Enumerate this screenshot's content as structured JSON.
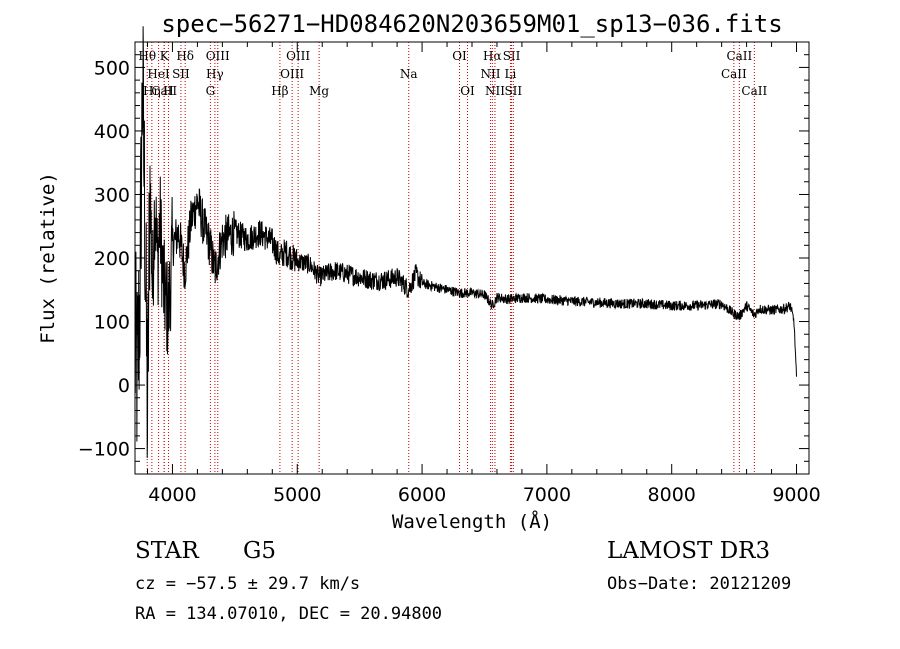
{
  "chart_data": {
    "type": "line",
    "title": "spec−56271−HD084620N203659M01_sp13−036.fits",
    "xlabel": "Wavelength (Å)",
    "ylabel": "Flux (relative)",
    "xlim": [
      3700,
      9100
    ],
    "ylim": [
      -140,
      540
    ],
    "x_ticks": [
      4000,
      5000,
      6000,
      7000,
      8000,
      9000
    ],
    "x_tick_labels": [
      "4000",
      "5000",
      "6000",
      "7000",
      "8000",
      "9000"
    ],
    "y_ticks": [
      -100,
      0,
      100,
      200,
      300,
      400,
      500
    ],
    "y_tick_labels": [
      "−100",
      "0",
      "100",
      "200",
      "300",
      "400",
      "500"
    ],
    "spectrum_anchors": [
      [
        3700,
        60
      ],
      [
        3720,
        10
      ],
      [
        3740,
        150
      ],
      [
        3760,
        480
      ],
      [
        3780,
        250
      ],
      [
        3800,
        -60
      ],
      [
        3820,
        330
      ],
      [
        3840,
        150
      ],
      [
        3860,
        300
      ],
      [
        3880,
        190
      ],
      [
        3900,
        260
      ],
      [
        3930,
        150
      ],
      [
        3968,
        110
      ],
      [
        4000,
        220
      ],
      [
        4050,
        240
      ],
      [
        4100,
        180
      ],
      [
        4150,
        260
      ],
      [
        4200,
        290
      ],
      [
        4250,
        250
      ],
      [
        4300,
        220
      ],
      [
        4340,
        180
      ],
      [
        4400,
        230
      ],
      [
        4500,
        240
      ],
      [
        4600,
        230
      ],
      [
        4700,
        240
      ],
      [
        4800,
        225
      ],
      [
        4861,
        200
      ],
      [
        4900,
        210
      ],
      [
        5000,
        195
      ],
      [
        5100,
        190
      ],
      [
        5175,
        170
      ],
      [
        5300,
        180
      ],
      [
        5400,
        175
      ],
      [
        5500,
        170
      ],
      [
        5600,
        165
      ],
      [
        5700,
        165
      ],
      [
        5800,
        170
      ],
      [
        5893,
        150
      ],
      [
        5950,
        175
      ],
      [
        6000,
        160
      ],
      [
        6100,
        155
      ],
      [
        6200,
        150
      ],
      [
        6300,
        145
      ],
      [
        6400,
        145
      ],
      [
        6500,
        142
      ],
      [
        6563,
        125
      ],
      [
        6600,
        138
      ],
      [
        6700,
        135
      ],
      [
        6800,
        138
      ],
      [
        7000,
        135
      ],
      [
        7200,
        132
      ],
      [
        7400,
        130
      ],
      [
        7600,
        128
      ],
      [
        7800,
        128
      ],
      [
        8000,
        125
      ],
      [
        8200,
        125
      ],
      [
        8400,
        128
      ],
      [
        8498,
        112
      ],
      [
        8542,
        108
      ],
      [
        8600,
        125
      ],
      [
        8662,
        110
      ],
      [
        8700,
        120
      ],
      [
        8800,
        118
      ],
      [
        8900,
        120
      ],
      [
        8950,
        125
      ],
      [
        8980,
        100
      ],
      [
        9000,
        10
      ]
    ],
    "spectral_lines": [
      {
        "label": "CaII",
        "x": 3934,
        "row": 2
      },
      {
        "label": "Hθ",
        "x": 3798,
        "row": 0
      },
      {
        "label": "Hη",
        "x": 3835,
        "row": 2
      },
      {
        "label": "K",
        "x": 3934,
        "row": 0
      },
      {
        "label": "HeI",
        "x": 3889,
        "row": 1
      },
      {
        "label": "H",
        "x": 3968,
        "row": 2
      },
      {
        "label": "SII",
        "x": 4068,
        "row": 1
      },
      {
        "label": "Hδ",
        "x": 4102,
        "row": 0
      },
      {
        "label": "OIII",
        "x": 4363,
        "row": 0
      },
      {
        "label": "Hγ",
        "x": 4340,
        "row": 1
      },
      {
        "label": "G",
        "x": 4304,
        "row": 2
      },
      {
        "label": "Hβ",
        "x": 4861,
        "row": 2
      },
      {
        "label": "OIII",
        "x": 5007,
        "row": 0
      },
      {
        "label": "OIII",
        "x": 4959,
        "row": 1
      },
      {
        "label": "Mg",
        "x": 5175,
        "row": 2
      },
      {
        "label": "Na",
        "x": 5893,
        "row": 1
      },
      {
        "label": "OI",
        "x": 6300,
        "row": 0
      },
      {
        "label": "OI",
        "x": 6364,
        "row": 2
      },
      {
        "label": "Hα",
        "x": 6563,
        "row": 0
      },
      {
        "label": "NII",
        "x": 6548,
        "row": 1
      },
      {
        "label": "NII",
        "x": 6584,
        "row": 2
      },
      {
        "label": "SII",
        "x": 6717,
        "row": 0
      },
      {
        "label": "Li",
        "x": 6708,
        "row": 1
      },
      {
        "label": "SII",
        "x": 6731,
        "row": 2
      },
      {
        "label": "CaII",
        "x": 8542,
        "row": 0
      },
      {
        "label": "CaII",
        "x": 8498,
        "row": 1
      },
      {
        "label": "CaII",
        "x": 8662,
        "row": 2
      }
    ],
    "colors": {
      "spectrum": "#000000",
      "line_markers": "#cc0000"
    }
  },
  "info": {
    "type": "STAR",
    "subclass": "G5",
    "survey": "LAMOST DR3",
    "cz": "cz = −57.5 ± 29.7 km/s",
    "obs_date": "Obs−Date: 20121209",
    "radec": "RA = 134.07010, DEC =  20.94800"
  }
}
